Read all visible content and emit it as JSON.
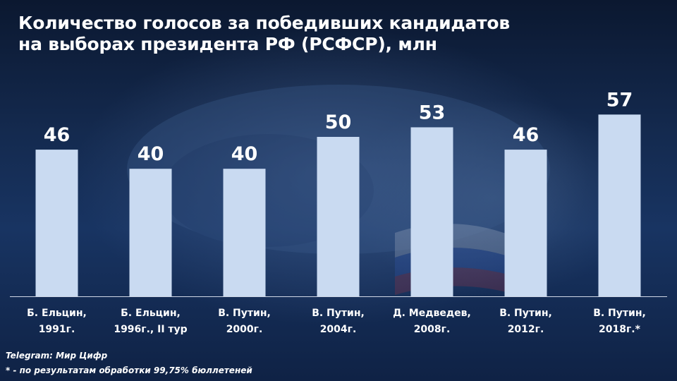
{
  "title_lines": [
    "Количество голосов за победивших кандидатов",
    "на выборах президента РФ (РСФСР), млн"
  ],
  "footer": {
    "source": "Telegram: Мир Цифр",
    "note": "* - по результатам обработки 99,75% бюллетеней"
  },
  "colors": {
    "bar": "#c9daf1",
    "axis": "#d0d8e6",
    "text": "#ffffff"
  },
  "chart_data": {
    "type": "bar",
    "title": "Количество голосов за победивших кандидатов на выборах президента РФ (РСФСР), млн",
    "categories": [
      [
        "Б. Ельцин,",
        "1991г."
      ],
      [
        "Б. Ельцин,",
        "1996г., II тур"
      ],
      [
        "В. Путин,",
        "2000г."
      ],
      [
        "В. Путин,",
        "2004г."
      ],
      [
        "Д. Медведев,",
        "2008г."
      ],
      [
        "В. Путин,",
        "2012г."
      ],
      [
        "В. Путин,",
        "2018г.*"
      ]
    ],
    "values": [
      46,
      40,
      40,
      50,
      53,
      46,
      57
    ],
    "value_labels": [
      "46",
      "40",
      "40",
      "50",
      "53",
      "46",
      "57"
    ],
    "ylim": [
      0,
      60
    ],
    "grid": false,
    "legend": "none"
  }
}
